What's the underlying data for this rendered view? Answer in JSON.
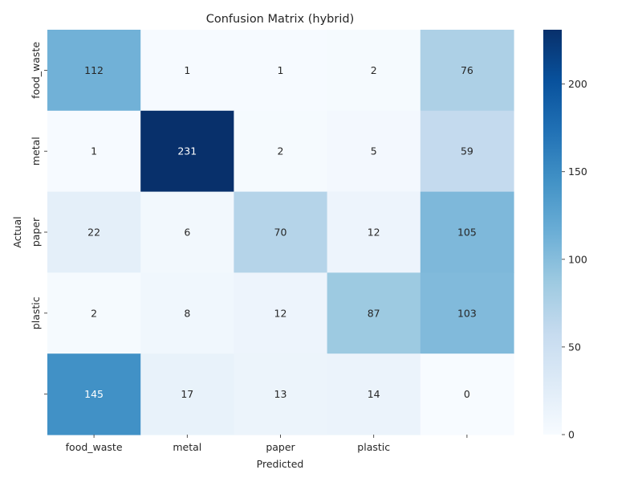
{
  "chart_data": {
    "type": "heatmap",
    "title": "Confusion Matrix (hybrid)",
    "xlabel": "Predicted",
    "ylabel": "Actual",
    "x_tick_labels": [
      "food_waste",
      "metal",
      "paper",
      "plastic",
      ""
    ],
    "y_tick_labels": [
      "food_waste",
      "metal",
      "paper",
      "plastic",
      ""
    ],
    "values": [
      [
        112,
        1,
        1,
        2,
        76
      ],
      [
        1,
        231,
        2,
        5,
        59
      ],
      [
        22,
        6,
        70,
        12,
        105
      ],
      [
        2,
        8,
        12,
        87,
        103
      ],
      [
        145,
        17,
        13,
        14,
        0
      ]
    ],
    "colormap": "Blues",
    "vmin": 0,
    "vmax": 231,
    "colorbar_ticks": [
      0,
      50,
      100,
      150,
      200
    ],
    "annotate": true
  },
  "colors": {
    "cmap_low": "#f7fbff",
    "cmap_high": "#08306b",
    "text_dark": "#262626",
    "text_light": "#ffffff"
  }
}
